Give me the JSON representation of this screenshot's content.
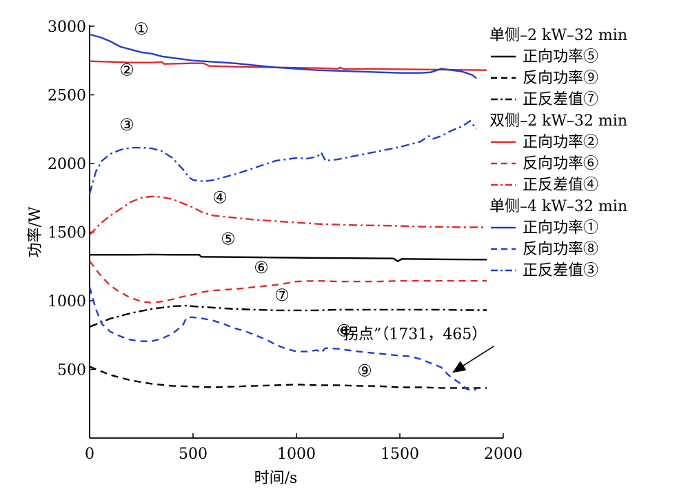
{
  "chart_data": {
    "type": "line",
    "xlabel": "时间/s",
    "ylabel": "功率/W",
    "xlim": [
      0,
      2000
    ],
    "ylim": [
      0,
      3000
    ],
    "x_ticks": [
      0,
      500,
      1000,
      1500,
      2000
    ],
    "y_ticks": [
      500,
      1000,
      1500,
      2000,
      2500,
      3000
    ],
    "x_tick_labels": [
      "0",
      "500",
      "1000",
      "1500",
      "2000"
    ],
    "y_tick_labels": [
      "500",
      "1000",
      "1500",
      "2000",
      "2500",
      "3000"
    ],
    "grid": false,
    "legend_position": "top-right",
    "legend_groups": [
      {
        "title": "单侧–2 kW–32 min",
        "entries": [
          {
            "label": "正向功率⑤",
            "series": 0
          },
          {
            "label": "反向功率⑨",
            "series": 1
          },
          {
            "label": "正反差值⑦",
            "series": 2
          }
        ]
      },
      {
        "title": "双侧–2 kW–32 min",
        "entries": [
          {
            "label": "正向功率②",
            "series": 3
          },
          {
            "label": "反向功率⑥",
            "series": 4
          },
          {
            "label": "正反差值④",
            "series": 5
          }
        ]
      },
      {
        "title": "单侧–4 kW–32 min",
        "entries": [
          {
            "label": "正向功率①",
            "series": 6
          },
          {
            "label": "反向功率⑧",
            "series": 7
          },
          {
            "label": "正反差值③",
            "series": 8
          }
        ]
      }
    ],
    "series": [
      {
        "tag": "⑤",
        "color": "#000000",
        "dash": "solid",
        "points": [
          [
            0,
            1335
          ],
          [
            100,
            1335
          ],
          [
            200,
            1335
          ],
          [
            300,
            1337
          ],
          [
            400,
            1335
          ],
          [
            500,
            1335
          ],
          [
            530,
            1335
          ],
          [
            540,
            1320
          ],
          [
            700,
            1318
          ],
          [
            900,
            1315
          ],
          [
            1100,
            1312
          ],
          [
            1300,
            1310
          ],
          [
            1470,
            1308
          ],
          [
            1490,
            1288
          ],
          [
            1510,
            1305
          ],
          [
            1700,
            1302
          ],
          [
            1920,
            1300
          ]
        ]
      },
      {
        "tag": "⑨",
        "color": "#000000",
        "dash": "dashed",
        "points": [
          [
            0,
            520
          ],
          [
            50,
            490
          ],
          [
            100,
            460
          ],
          [
            200,
            420
          ],
          [
            300,
            395
          ],
          [
            400,
            380
          ],
          [
            500,
            375
          ],
          [
            600,
            370
          ],
          [
            700,
            375
          ],
          [
            800,
            380
          ],
          [
            900,
            385
          ],
          [
            1000,
            390
          ],
          [
            1100,
            385
          ],
          [
            1200,
            385
          ],
          [
            1300,
            380
          ],
          [
            1400,
            378
          ],
          [
            1500,
            370
          ],
          [
            1600,
            370
          ],
          [
            1700,
            365
          ],
          [
            1800,
            365
          ],
          [
            1920,
            365
          ]
        ]
      },
      {
        "tag": "⑦",
        "color": "#000000",
        "dash": "dashdot",
        "points": [
          [
            0,
            810
          ],
          [
            50,
            840
          ],
          [
            100,
            870
          ],
          [
            200,
            910
          ],
          [
            300,
            940
          ],
          [
            400,
            960
          ],
          [
            470,
            965
          ],
          [
            500,
            960
          ],
          [
            600,
            950
          ],
          [
            700,
            940
          ],
          [
            800,
            935
          ],
          [
            900,
            930
          ],
          [
            1000,
            930
          ],
          [
            1100,
            930
          ],
          [
            1200,
            935
          ],
          [
            1300,
            935
          ],
          [
            1400,
            935
          ],
          [
            1500,
            935
          ],
          [
            1600,
            935
          ],
          [
            1700,
            935
          ],
          [
            1800,
            932
          ],
          [
            1920,
            932
          ]
        ]
      },
      {
        "tag": "②",
        "color": "#e02a2a",
        "dash": "solid",
        "points": [
          [
            0,
            2745
          ],
          [
            100,
            2740
          ],
          [
            200,
            2735
          ],
          [
            300,
            2735
          ],
          [
            350,
            2738
          ],
          [
            360,
            2725
          ],
          [
            500,
            2730
          ],
          [
            550,
            2730
          ],
          [
            580,
            2710
          ],
          [
            700,
            2705
          ],
          [
            900,
            2700
          ],
          [
            1100,
            2695
          ],
          [
            1200,
            2690
          ],
          [
            1210,
            2700
          ],
          [
            1230,
            2688
          ],
          [
            1400,
            2688
          ],
          [
            1600,
            2685
          ],
          [
            1800,
            2682
          ],
          [
            1920,
            2680
          ]
        ]
      },
      {
        "tag": "⑥",
        "color": "#e02a2a",
        "dash": "dashed",
        "points": [
          [
            0,
            1290
          ],
          [
            50,
            1190
          ],
          [
            100,
            1110
          ],
          [
            150,
            1060
          ],
          [
            200,
            1020
          ],
          [
            250,
            995
          ],
          [
            300,
            985
          ],
          [
            350,
            995
          ],
          [
            400,
            1010
          ],
          [
            450,
            1030
          ],
          [
            500,
            1045
          ],
          [
            550,
            1065
          ],
          [
            600,
            1075
          ],
          [
            700,
            1085
          ],
          [
            800,
            1100
          ],
          [
            900,
            1115
          ],
          [
            1000,
            1140
          ],
          [
            1100,
            1145
          ],
          [
            1200,
            1140
          ],
          [
            1300,
            1140
          ],
          [
            1400,
            1140
          ],
          [
            1500,
            1145
          ],
          [
            1600,
            1145
          ],
          [
            1700,
            1145
          ],
          [
            1800,
            1145
          ],
          [
            1920,
            1145
          ]
        ]
      },
      {
        "tag": "④",
        "color": "#e02a2a",
        "dash": "dashdot",
        "points": [
          [
            0,
            1480
          ],
          [
            50,
            1560
          ],
          [
            100,
            1620
          ],
          [
            150,
            1670
          ],
          [
            200,
            1720
          ],
          [
            250,
            1750
          ],
          [
            300,
            1760
          ],
          [
            350,
            1755
          ],
          [
            400,
            1740
          ],
          [
            450,
            1710
          ],
          [
            500,
            1680
          ],
          [
            550,
            1640
          ],
          [
            600,
            1620
          ],
          [
            700,
            1605
          ],
          [
            800,
            1590
          ],
          [
            900,
            1580
          ],
          [
            1000,
            1570
          ],
          [
            1100,
            1560
          ],
          [
            1200,
            1555
          ],
          [
            1300,
            1550
          ],
          [
            1400,
            1548
          ],
          [
            1500,
            1545
          ],
          [
            1600,
            1540
          ],
          [
            1700,
            1538
          ],
          [
            1800,
            1535
          ],
          [
            1920,
            1535
          ]
        ]
      },
      {
        "tag": "①",
        "color": "#1f3fcf",
        "dash": "solid",
        "points": [
          [
            0,
            2940
          ],
          [
            50,
            2920
          ],
          [
            100,
            2890
          ],
          [
            150,
            2850
          ],
          [
            200,
            2830
          ],
          [
            250,
            2810
          ],
          [
            300,
            2800
          ],
          [
            350,
            2780
          ],
          [
            400,
            2770
          ],
          [
            450,
            2760
          ],
          [
            500,
            2750
          ],
          [
            600,
            2740
          ],
          [
            700,
            2730
          ],
          [
            800,
            2715
          ],
          [
            900,
            2700
          ],
          [
            1000,
            2690
          ],
          [
            1100,
            2680
          ],
          [
            1200,
            2675
          ],
          [
            1300,
            2670
          ],
          [
            1400,
            2665
          ],
          [
            1500,
            2660
          ],
          [
            1600,
            2660
          ],
          [
            1650,
            2665
          ],
          [
            1700,
            2690
          ],
          [
            1750,
            2680
          ],
          [
            1800,
            2670
          ],
          [
            1850,
            2645
          ],
          [
            1870,
            2620
          ]
        ]
      },
      {
        "tag": "⑧",
        "color": "#1f3fcf",
        "dash": "dashed",
        "points": [
          [
            0,
            1100
          ],
          [
            30,
            940
          ],
          [
            60,
            830
          ],
          [
            100,
            775
          ],
          [
            150,
            740
          ],
          [
            200,
            715
          ],
          [
            250,
            705
          ],
          [
            300,
            705
          ],
          [
            350,
            725
          ],
          [
            400,
            760
          ],
          [
            450,
            820
          ],
          [
            470,
            880
          ],
          [
            500,
            880
          ],
          [
            550,
            870
          ],
          [
            600,
            855
          ],
          [
            650,
            830
          ],
          [
            700,
            800
          ],
          [
            750,
            780
          ],
          [
            800,
            750
          ],
          [
            850,
            720
          ],
          [
            900,
            680
          ],
          [
            950,
            650
          ],
          [
            1000,
            630
          ],
          [
            1050,
            630
          ],
          [
            1100,
            640
          ],
          [
            1120,
            620
          ],
          [
            1140,
            655
          ],
          [
            1200,
            650
          ],
          [
            1300,
            630
          ],
          [
            1400,
            615
          ],
          [
            1500,
            600
          ],
          [
            1550,
            595
          ],
          [
            1600,
            575
          ],
          [
            1650,
            545
          ],
          [
            1700,
            515
          ],
          [
            1731,
            465
          ],
          [
            1750,
            440
          ],
          [
            1780,
            410
          ],
          [
            1800,
            390
          ],
          [
            1820,
            360
          ],
          [
            1850,
            345
          ],
          [
            1870,
            355
          ]
        ]
      },
      {
        "tag": "③",
        "color": "#1f3fcf",
        "dash": "dashdot",
        "points": [
          [
            0,
            1780
          ],
          [
            30,
            1940
          ],
          [
            60,
            2020
          ],
          [
            100,
            2070
          ],
          [
            150,
            2100
          ],
          [
            200,
            2115
          ],
          [
            250,
            2115
          ],
          [
            300,
            2110
          ],
          [
            350,
            2090
          ],
          [
            400,
            2040
          ],
          [
            450,
            1960
          ],
          [
            480,
            1900
          ],
          [
            500,
            1880
          ],
          [
            550,
            1870
          ],
          [
            600,
            1880
          ],
          [
            700,
            1920
          ],
          [
            800,
            1970
          ],
          [
            900,
            2020
          ],
          [
            1000,
            2040
          ],
          [
            1050,
            2035
          ],
          [
            1100,
            2050
          ],
          [
            1120,
            2080
          ],
          [
            1140,
            2020
          ],
          [
            1200,
            2030
          ],
          [
            1300,
            2060
          ],
          [
            1400,
            2090
          ],
          [
            1500,
            2120
          ],
          [
            1600,
            2160
          ],
          [
            1640,
            2200
          ],
          [
            1660,
            2180
          ],
          [
            1700,
            2200
          ],
          [
            1750,
            2240
          ],
          [
            1800,
            2270
          ],
          [
            1840,
            2310
          ],
          [
            1870,
            2250
          ]
        ]
      }
    ],
    "curve_labels": [
      {
        "text": "①",
        "x": 250,
        "y": 2940
      },
      {
        "text": "②",
        "x": 180,
        "y": 2640
      },
      {
        "text": "③",
        "x": 180,
        "y": 2240
      },
      {
        "text": "④",
        "x": 630,
        "y": 1710
      },
      {
        "text": "⑤",
        "x": 670,
        "y": 1410
      },
      {
        "text": "⑥",
        "x": 830,
        "y": 1200
      },
      {
        "text": "⑦",
        "x": 930,
        "y": 1000
      },
      {
        "text": "⑧",
        "x": 1230,
        "y": 740
      },
      {
        "text": "⑨",
        "x": 1330,
        "y": 450
      }
    ],
    "annotation": {
      "text": "“拐点”（1731，465）",
      "point": [
        1731,
        465
      ],
      "label_x": 1555,
      "label_y": 720
    }
  }
}
